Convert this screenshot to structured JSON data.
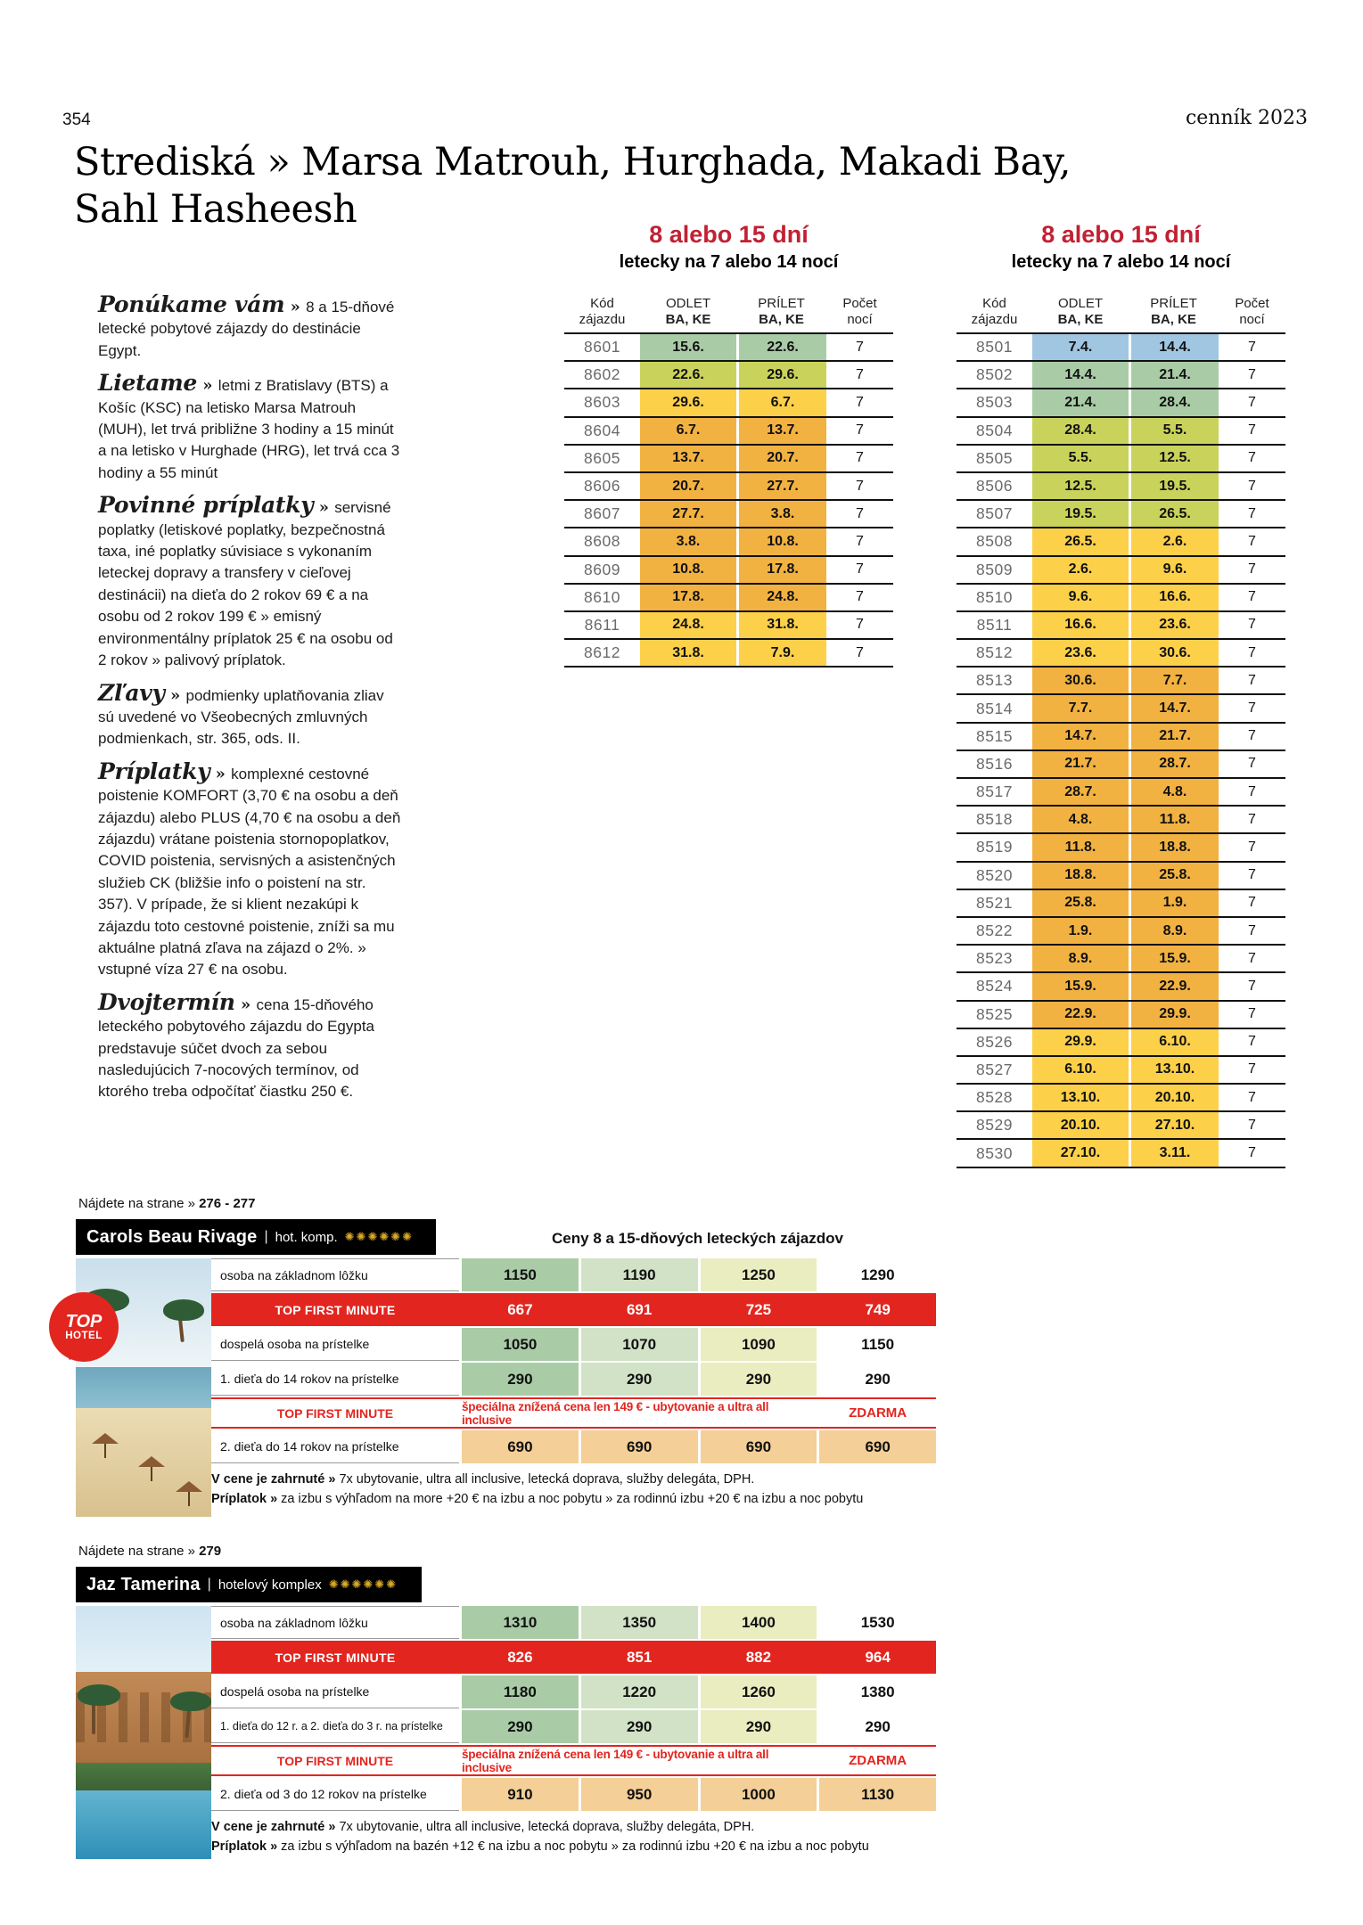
{
  "page_header": {
    "page_number": "354",
    "edition": "cenník 2023"
  },
  "title": {
    "line1": "Strediská » Marsa Matrouh, Hurghada, Makadi Bay,",
    "line2": "Sahl Hasheesh"
  },
  "info_paragraphs": [
    {
      "lead": "Ponúkame vám",
      "text": "8 a 15-dňové letecké pobytové zájazdy do destinácie Egypt."
    },
    {
      "lead": "Lietame",
      "text": "letmi z Bratislavy (BTS) a Košíc (KSC) na letisko Marsa Matrouh (MUH), let trvá približne 3 hodiny a 15 minút a na letisko v Hurghade (HRG), let trvá cca 3 hodiny a 55 minút"
    },
    {
      "lead": "Povinné príplatky",
      "text": "servisné poplatky (letiskové poplatky, bezpečnostná taxa, iné poplatky súvisiace s vykonaním leteckej dopravy a transfery v cieľovej destinácii) na dieťa do 2 rokov 69 € a na osobu od 2 rokov 199 € » emisný environmentálny príplatok 25 € na osobu od 2 rokov » palivový príplatok."
    },
    {
      "lead": "Zľavy",
      "text": "podmienky uplatňovania zliav sú uvedené vo Všeobecných zmluvných podmienkach, str. 365, ods. II."
    },
    {
      "lead": "Príplatky",
      "text": "komplexné cestovné poistenie KOMFORT (3,70 € na osobu a deň zájazdu) alebo PLUS (4,70 € na osobu a deň zájazdu) vrátane poistenia stornopoplatkov, COVID poistenia, servisných a asistenčných služieb CK (bližšie info o poistení na str. 357). V prípade, že si klient nezakúpi k zájazdu toto cestovné poistenie, zníži sa mu aktuálne platná zľava na zájazd o 2%. » vstupné víza 27 € na osobu."
    },
    {
      "lead": "Dvojtermín",
      "text": "cena 15-dňového leteckého pobytového zájazdu do Egypta predstavuje súčet dvoch za sebou nasledujúcich 7-nocových termínov, od ktorého treba odpočítať čiastku 250 €."
    }
  ],
  "colors": {
    "accent_red": "#c22033",
    "bar_red": "#e2251f",
    "gold": "#d9a927",
    "seasons": {
      "blue": "#a0c6e2",
      "green": "#a9cca7",
      "olive": "#c9d35b",
      "yellow": "#fdd04a",
      "amber": "#f2b242"
    },
    "hotel_columns": [
      "#a9cca7",
      "#d2e2c6",
      "#e9edc0",
      "#ffffff"
    ],
    "child_row": "#f4cf97"
  },
  "flight_tables": [
    {
      "heading": "8 alebo 15 dní",
      "subheading": "letecky na 7 alebo 14 nocí",
      "columns": [
        [
          "Kód",
          "zájazdu"
        ],
        [
          "ODLET",
          "BA, KE"
        ],
        [
          "PRÍLET",
          "BA, KE"
        ],
        [
          "Počet",
          "nocí"
        ]
      ],
      "rows": [
        [
          "8601",
          "15.6.",
          "22.6.",
          "7",
          "green"
        ],
        [
          "8602",
          "22.6.",
          "29.6.",
          "7",
          "olive"
        ],
        [
          "8603",
          "29.6.",
          "6.7.",
          "7",
          "yellow"
        ],
        [
          "8604",
          "6.7.",
          "13.7.",
          "7",
          "amber"
        ],
        [
          "8605",
          "13.7.",
          "20.7.",
          "7",
          "amber"
        ],
        [
          "8606",
          "20.7.",
          "27.7.",
          "7",
          "amber"
        ],
        [
          "8607",
          "27.7.",
          "3.8.",
          "7",
          "amber"
        ],
        [
          "8608",
          "3.8.",
          "10.8.",
          "7",
          "amber"
        ],
        [
          "8609",
          "10.8.",
          "17.8.",
          "7",
          "amber"
        ],
        [
          "8610",
          "17.8.",
          "24.8.",
          "7",
          "amber"
        ],
        [
          "8611",
          "24.8.",
          "31.8.",
          "7",
          "yellow"
        ],
        [
          "8612",
          "31.8.",
          "7.9.",
          "7",
          "yellow"
        ]
      ]
    },
    {
      "heading": "8 alebo 15 dní",
      "subheading": "letecky na 7 alebo 14 nocí",
      "columns": [
        [
          "Kód",
          "zájazdu"
        ],
        [
          "ODLET",
          "BA, KE"
        ],
        [
          "PRÍLET",
          "BA, KE"
        ],
        [
          "Počet",
          "nocí"
        ]
      ],
      "rows": [
        [
          "8501",
          "7.4.",
          "14.4.",
          "7",
          "blue"
        ],
        [
          "8502",
          "14.4.",
          "21.4.",
          "7",
          "green"
        ],
        [
          "8503",
          "21.4.",
          "28.4.",
          "7",
          "green"
        ],
        [
          "8504",
          "28.4.",
          "5.5.",
          "7",
          "olive"
        ],
        [
          "8505",
          "5.5.",
          "12.5.",
          "7",
          "olive"
        ],
        [
          "8506",
          "12.5.",
          "19.5.",
          "7",
          "olive"
        ],
        [
          "8507",
          "19.5.",
          "26.5.",
          "7",
          "olive"
        ],
        [
          "8508",
          "26.5.",
          "2.6.",
          "7",
          "yellow"
        ],
        [
          "8509",
          "2.6.",
          "9.6.",
          "7",
          "yellow"
        ],
        [
          "8510",
          "9.6.",
          "16.6.",
          "7",
          "yellow"
        ],
        [
          "8511",
          "16.6.",
          "23.6.",
          "7",
          "yellow"
        ],
        [
          "8512",
          "23.6.",
          "30.6.",
          "7",
          "yellow"
        ],
        [
          "8513",
          "30.6.",
          "7.7.",
          "7",
          "amber"
        ],
        [
          "8514",
          "7.7.",
          "14.7.",
          "7",
          "amber"
        ],
        [
          "8515",
          "14.7.",
          "21.7.",
          "7",
          "amber"
        ],
        [
          "8516",
          "21.7.",
          "28.7.",
          "7",
          "amber"
        ],
        [
          "8517",
          "28.7.",
          "4.8.",
          "7",
          "amber"
        ],
        [
          "8518",
          "4.8.",
          "11.8.",
          "7",
          "amber"
        ],
        [
          "8519",
          "11.8.",
          "18.8.",
          "7",
          "amber"
        ],
        [
          "8520",
          "18.8.",
          "25.8.",
          "7",
          "amber"
        ],
        [
          "8521",
          "25.8.",
          "1.9.",
          "7",
          "amber"
        ],
        [
          "8522",
          "1.9.",
          "8.9.",
          "7",
          "amber"
        ],
        [
          "8523",
          "8.9.",
          "15.9.",
          "7",
          "amber"
        ],
        [
          "8524",
          "15.9.",
          "22.9.",
          "7",
          "amber"
        ],
        [
          "8525",
          "22.9.",
          "29.9.",
          "7",
          "amber"
        ],
        [
          "8526",
          "29.9.",
          "6.10.",
          "7",
          "yellow"
        ],
        [
          "8527",
          "6.10.",
          "13.10.",
          "7",
          "yellow"
        ],
        [
          "8528",
          "13.10.",
          "20.10.",
          "7",
          "yellow"
        ],
        [
          "8529",
          "20.10.",
          "27.10.",
          "7",
          "yellow"
        ],
        [
          "8530",
          "27.10.",
          "3.11.",
          "7",
          "yellow"
        ]
      ]
    }
  ],
  "hotels": [
    {
      "find_label": "Nájdete na strane »",
      "find_pages": "276 - 277",
      "name": "Carols Beau Rivage",
      "separator": "|",
      "category": "hot. komp.",
      "stars": "✺✺✺✺✺✺",
      "price_title": "Ceny 8 a 15-dňových leteckých zájazdov",
      "badge": {
        "line1": "TOP",
        "line2": "HOTEL"
      },
      "rows": [
        {
          "type": "normal",
          "label": "osoba na základnom lôžku",
          "prices": [
            "1150",
            "1190",
            "1250",
            "1290"
          ]
        },
        {
          "type": "tfm",
          "label": "TOP FIRST MINUTE",
          "prices": [
            "667",
            "691",
            "725",
            "749"
          ]
        },
        {
          "type": "normal",
          "label": "dospelá osoba na prístelke",
          "prices": [
            "1050",
            "1070",
            "1090",
            "1150"
          ]
        },
        {
          "type": "normal",
          "label": "1. dieťa do 14 rokov na prístelke",
          "prices": [
            "290",
            "290",
            "290",
            "290"
          ]
        },
        {
          "type": "promo",
          "label": "TOP FIRST MINUTE",
          "text": "špeciálna znížená cena len 149 € - ubytovanie a ultra all inclusive",
          "tail": "ZDARMA"
        },
        {
          "type": "child",
          "label": "2. dieťa do 14 rokov na prístelke",
          "prices": [
            "690",
            "690",
            "690",
            "690"
          ]
        }
      ],
      "included_label": "V cene je zahrnuté »",
      "included_text": "7x ubytovanie, ultra all inclusive, letecká doprava, služby delegáta, DPH.",
      "surcharge_label": "Príplatok »",
      "surcharge_text": "za izbu s výhľadom na more +20 € na izbu a noc pobytu » za rodinnú izbu +20 € na izbu a noc pobytu"
    },
    {
      "find_label": "Nájdete na strane »",
      "find_pages": "279",
      "name": "Jaz Tamerina",
      "separator": "|",
      "category": "hotelový komplex",
      "stars": "✺✺✺✺✺✺",
      "rows": [
        {
          "type": "normal",
          "label": "osoba na základnom lôžku",
          "prices": [
            "1310",
            "1350",
            "1400",
            "1530"
          ]
        },
        {
          "type": "tfm",
          "label": "TOP FIRST MINUTE",
          "prices": [
            "826",
            "851",
            "882",
            "964"
          ]
        },
        {
          "type": "normal",
          "label": "dospelá osoba na prístelke",
          "prices": [
            "1180",
            "1220",
            "1260",
            "1380"
          ]
        },
        {
          "type": "normal",
          "label": "1. dieťa do 12 r. a 2. dieťa do 3 r. na prístelke",
          "prices": [
            "290",
            "290",
            "290",
            "290"
          ]
        },
        {
          "type": "promo",
          "label": "TOP FIRST MINUTE",
          "text": "špeciálna znížená cena len 149 € - ubytovanie a ultra all inclusive",
          "tail": "ZDARMA"
        },
        {
          "type": "child",
          "label": "2. dieťa od 3 do 12 rokov na prístelke",
          "prices": [
            "910",
            "950",
            "1000",
            "1130"
          ]
        }
      ],
      "included_label": "V cene je zahrnuté »",
      "included_text": "7x ubytovanie, ultra all inclusive, letecká doprava, služby delegáta, DPH.",
      "surcharge_label": "Príplatok »",
      "surcharge_text": "za izbu s výhľadom na bazén +12 € na izbu a noc pobytu » za rodinnú izbu +20 € na izbu a noc pobytu"
    }
  ]
}
